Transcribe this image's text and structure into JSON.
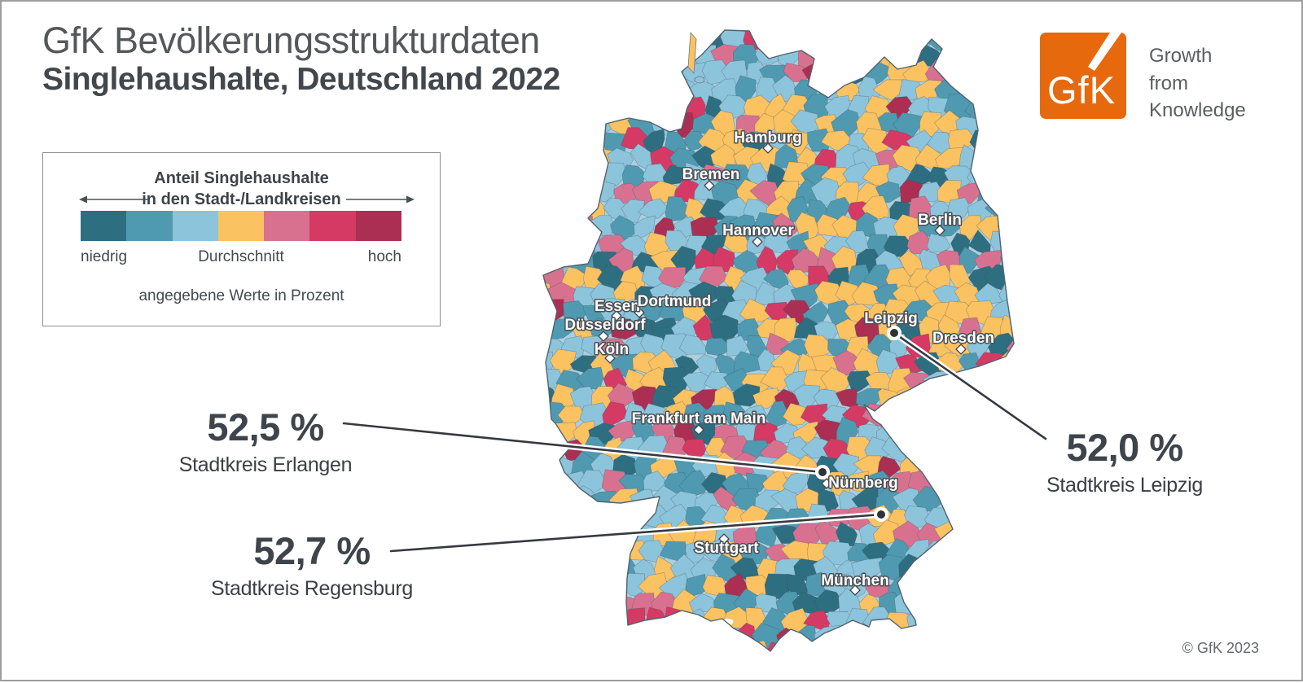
{
  "header": {
    "title_line1": "GfK Bevölkerungsstrukturdaten",
    "title_line2": "Singlehaushalte, Deutschland 2022"
  },
  "logo": {
    "text": "GfK",
    "tagline": "Growth\nfrom\nKnowledge",
    "orange": "#e7690e"
  },
  "legend": {
    "title_line1": "Anteil Singlehaushalte",
    "title_line2": "in den Stadt-/Landkreisen",
    "label_low": "niedrig",
    "label_mid": "Durchschnitt",
    "label_high": "hoch",
    "note": "angegebene Werte in Prozent",
    "colors": [
      "#2e6e81",
      "#4f9ab1",
      "#8cc4dc",
      "#fbc262",
      "#d8718f",
      "#d53a64",
      "#ab2f52"
    ]
  },
  "map": {
    "land_base": "#a9cfe0",
    "outline_color": "#51636f",
    "cities": [
      {
        "name": "Hamburg",
        "label": [
          941,
          167
        ],
        "marker": [
          941,
          180
        ]
      },
      {
        "name": "Bremen",
        "label": [
          871,
          212
        ],
        "marker": [
          869,
          226
        ]
      },
      {
        "name": "Berlin",
        "label": [
          1152,
          268
        ],
        "marker": [
          1152,
          281
        ]
      },
      {
        "name": "Hannover",
        "label": [
          929,
          281
        ],
        "marker": [
          928,
          295
        ]
      },
      {
        "name": "Essen",
        "label": [
          756,
          374
        ],
        "marker": [
          755,
          386
        ]
      },
      {
        "name": "Dortmund",
        "label": [
          826,
          368
        ],
        "marker": [
          783,
          382
        ]
      },
      {
        "name": "Düsseldorf",
        "label": [
          741,
          397
        ],
        "marker": [
          739,
          411
        ]
      },
      {
        "name": "Köln",
        "label": [
          749,
          427
        ],
        "marker": [
          747,
          438
        ]
      },
      {
        "name": "Leipzig",
        "label": [
          1092,
          389
        ],
        "marker": null
      },
      {
        "name": "Dresden",
        "label": [
          1181,
          413
        ],
        "marker": [
          1178,
          427
        ]
      },
      {
        "name": "Frankfurt am Main",
        "label": [
          856,
          512
        ],
        "marker": [
          856,
          526
        ]
      },
      {
        "name": "Nürnberg",
        "label": [
          1058,
          591
        ],
        "marker": [
          1013,
          592
        ]
      },
      {
        "name": "Stuttgart",
        "label": [
          890,
          671
        ],
        "marker": [
          887,
          660
        ]
      },
      {
        "name": "München",
        "label": [
          1048,
          711
        ],
        "marker": [
          1048,
          723
        ]
      }
    ],
    "callouts": [
      {
        "value": "52,5 %",
        "label": "Stadtkreis Erlangen",
        "line": [
          [
            420,
            518
          ],
          [
            1008,
            578
          ]
        ],
        "dot": [
          1008,
          578
        ]
      },
      {
        "value": "52,7 %",
        "label": "Stadtkreis Regensburg",
        "line": [
          [
            478,
            675
          ],
          [
            1080,
            630
          ]
        ],
        "dot": [
          1080,
          630
        ]
      },
      {
        "value": "52,0 %",
        "label": "Stadtkreis Leipzig",
        "line": [
          [
            1282,
            537
          ],
          [
            1096,
            407
          ]
        ],
        "dot": [
          1096,
          407
        ]
      }
    ]
  },
  "footer": {
    "copyright": "© GfK 2023"
  },
  "chart_data": {
    "type": "heatmap",
    "title": "GfK Bevölkerungsstrukturdaten — Singlehaushalte, Deutschland 2022",
    "legend_scale": [
      "niedrig",
      "Durchschnitt",
      "hoch"
    ],
    "unit": "Prozent",
    "highlighted_points": [
      {
        "name": "Stadtkreis Erlangen",
        "value": 52.5
      },
      {
        "name": "Stadtkreis Regensburg",
        "value": 52.7
      },
      {
        "name": "Stadtkreis Leipzig",
        "value": 52.0
      }
    ]
  }
}
